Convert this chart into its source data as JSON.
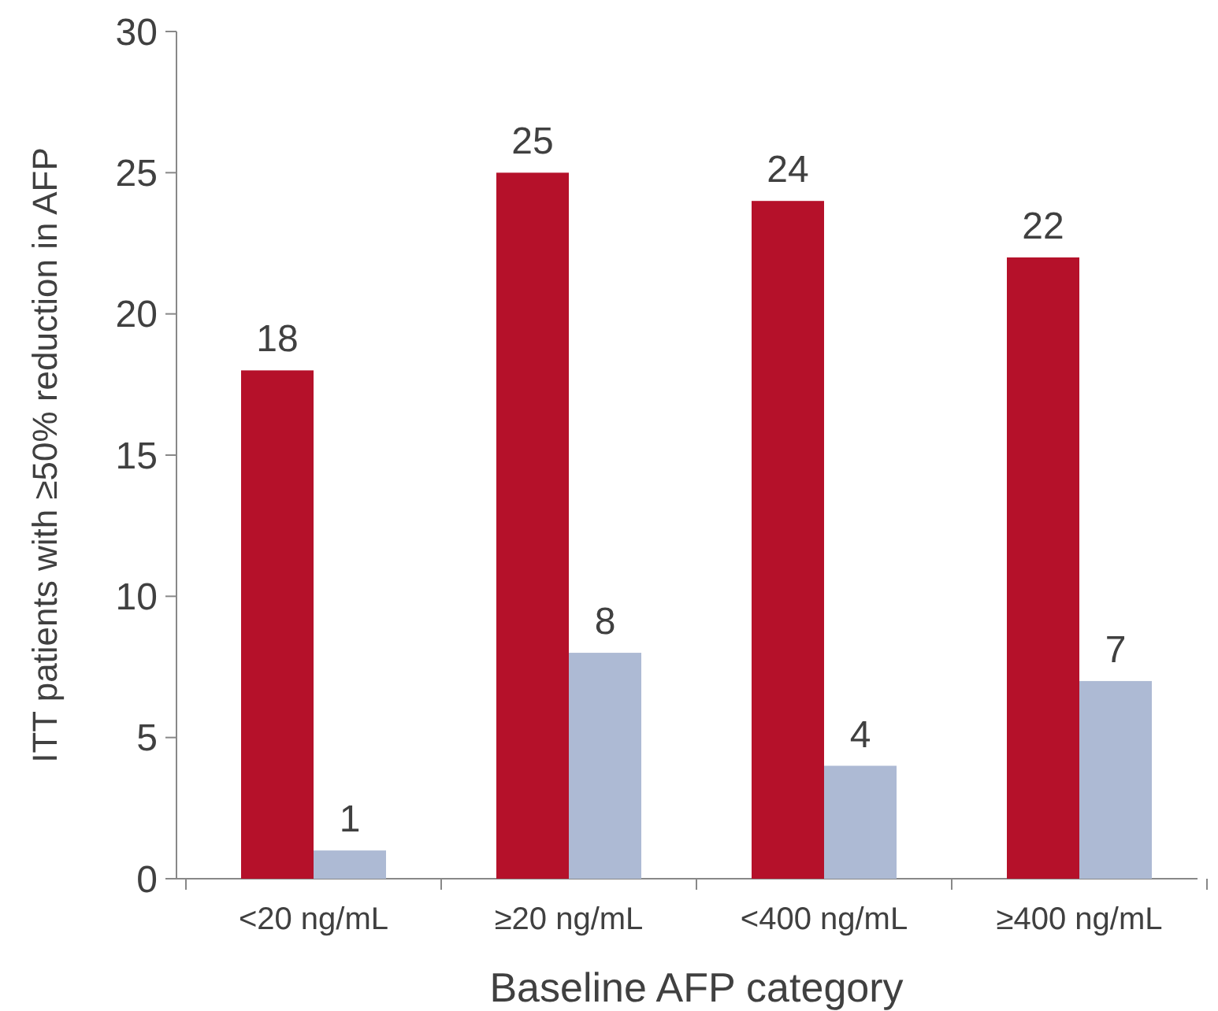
{
  "chart_data": {
    "type": "bar",
    "xlabel": "Baseline AFP category",
    "ylabel": "ITT patients with ≥50% reduction in AFP",
    "categories": [
      "<20 ng/mL",
      "≥20 ng/mL",
      "<400 ng/mL",
      "≥400 ng/mL"
    ],
    "series": [
      {
        "color": "#b5112a",
        "values": [
          18,
          25,
          24,
          22
        ]
      },
      {
        "color": "#adbad4",
        "values": [
          1,
          8,
          4,
          7
        ]
      }
    ],
    "ylim": [
      0,
      30
    ],
    "yticks": [
      0,
      5,
      10,
      15,
      20,
      25,
      30
    ],
    "data_labels": true,
    "grid": false
  }
}
